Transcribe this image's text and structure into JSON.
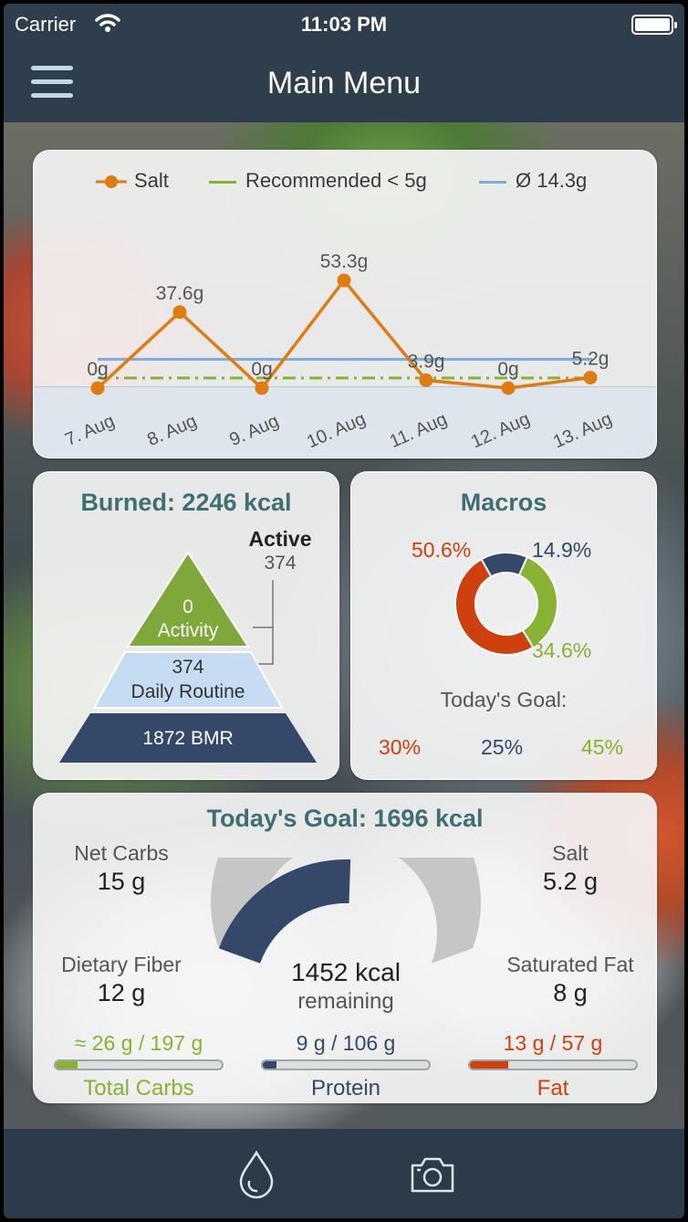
{
  "status_bar": {
    "carrier": "Carrier",
    "time": "11:03 PM"
  },
  "nav": {
    "title": "Main Menu",
    "menu_icon": "hamburger-menu-icon"
  },
  "salt_chart": {
    "legend": {
      "salt": "Salt",
      "recommended": "Recommended < 5g",
      "average": "Ø 14.3g"
    },
    "colors": {
      "salt": "#e07b10",
      "recommended": "#88b232",
      "average": "#7ea9dc"
    }
  },
  "chart_data": {
    "type": "line",
    "categories": [
      "7. Aug",
      "8. Aug",
      "9. Aug",
      "10. Aug",
      "11. Aug",
      "12. Aug",
      "13. Aug"
    ],
    "series": [
      {
        "name": "Salt",
        "values": [
          0,
          37.6,
          0,
          53.3,
          3.9,
          0,
          5.2
        ]
      }
    ],
    "data_labels": [
      "0g",
      "37.6g",
      "0g",
      "53.3g",
      "3.9g",
      "0g",
      "5.2g"
    ],
    "reference_lines": [
      {
        "name": "Recommended < 5g",
        "value": 5
      },
      {
        "name": "Ø 14.3g",
        "value": 14.3
      }
    ],
    "legend_position": "top"
  },
  "burned": {
    "title": "Burned: 2246 kcal",
    "active_label": "Active",
    "active_value": "374",
    "activity_value": "0",
    "activity_label": "Activity",
    "routine_value": "374",
    "routine_label": "Daily Routine",
    "bmr_label": "1872 BMR",
    "colors": {
      "activity": "#7fa83a",
      "routine": "#c6dcf3",
      "bmr": "#34496a"
    }
  },
  "macros": {
    "title": "Macros",
    "carbs_pct": "50.6%",
    "protein_pct": "14.9%",
    "fat_pct": "34.6%",
    "shares": {
      "carbs": 50.6,
      "protein": 14.9,
      "fat": 34.6
    },
    "goal_label": "Today's Goal:",
    "goal_carbs": "30%",
    "goal_protein": "25%",
    "goal_fat": "45%",
    "colors": {
      "carbs": "#d0400e",
      "protein": "#34496a",
      "fat": "#88b232"
    }
  },
  "goal": {
    "title": "Today's Goal: 1696 kcal",
    "net_carbs_label": "Net Carbs",
    "net_carbs_value": "15 g",
    "salt_label": "Salt",
    "salt_value": "5.2 g",
    "fiber_label": "Dietary Fiber",
    "fiber_value": "12 g",
    "sat_fat_label": "Saturated Fat",
    "sat_fat_value": "8 g",
    "remaining_value": "1452 kcal",
    "remaining_label": "remaining",
    "consumed_fraction": 0.144,
    "total_carbs_amount": "≈ 26 g / 197 g",
    "total_carbs_label": "Total Carbs",
    "total_carbs_fraction": 0.13,
    "protein_amount": "9 g / 106 g",
    "protein_label": "Protein",
    "protein_fraction": 0.085,
    "fat_amount": "13 g / 57 g",
    "fat_label": "Fat",
    "fat_fraction": 0.23,
    "colors": {
      "carbs": "#88b232",
      "protein": "#34496a",
      "fat": "#d0400e"
    }
  },
  "tab_bar": {
    "water_icon": "water-drop-icon",
    "camera_icon": "camera-icon"
  }
}
